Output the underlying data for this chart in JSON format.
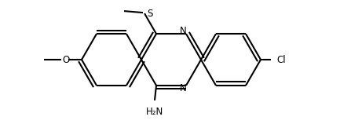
{
  "background_color": "#ffffff",
  "line_color": "#000000",
  "text_color": "#000000",
  "line_width": 1.5,
  "font_size": 8.5,
  "figsize": [
    4.33,
    1.58
  ],
  "dpi": 100,
  "xlim": [
    0.0,
    4.33
  ],
  "ylim": [
    0.0,
    1.58
  ]
}
